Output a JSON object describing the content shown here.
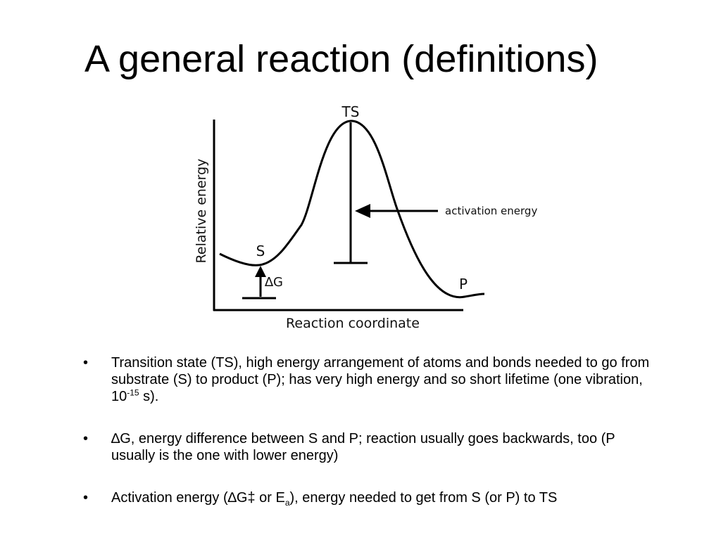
{
  "slide": {
    "title": "A general reaction (definitions)"
  },
  "diagram": {
    "y_axis_label": "Relative energy",
    "x_axis_label": "Reaction coordinate",
    "ts_label": "TS",
    "s_label": "S",
    "p_label": "P",
    "delta_symbol": "∆",
    "delta_g_letter": "G",
    "activation_label": "activation energy"
  },
  "bullets": {
    "marker": "•",
    "item1": {
      "text_before": "Transition state (TS), high energy arrangement of atoms and bonds needed to go from substrate (S)  to product (P); has very high energy and so short lifetime (one vibration, 10",
      "superscript": "-15",
      "text_after": " s)."
    },
    "item2": {
      "symbol": "∆",
      "text": "G, energy difference between S and P; reaction usually goes backwards, too (P usually is the one with lower energy)"
    },
    "item3": {
      "text_before": "Activation energy (",
      "symbol": "∆",
      "text_middle": "G‡ or E",
      "subscript": "a",
      "text_after": "), energy needed to get from S (or P) to TS"
    }
  }
}
